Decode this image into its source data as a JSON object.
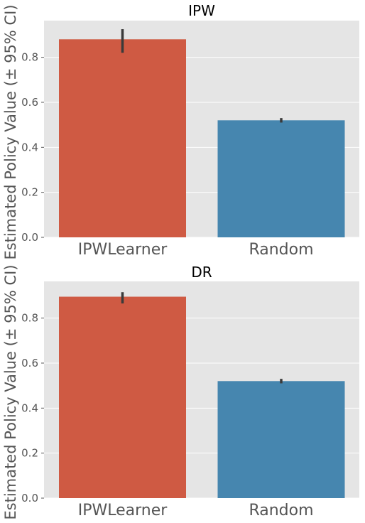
{
  "colors": {
    "panel_bg": "#e5e5e5",
    "grid": "#ffffff",
    "error_bar": "#3a3a3a",
    "series": [
      "#cf5a43",
      "#4686af"
    ]
  },
  "chart_data": [
    {
      "type": "bar",
      "title": "IPW",
      "ylabel": "Estimated Policy Value (± 95% CI)",
      "categories": [
        "IPWLearner",
        "Random"
      ],
      "values": [
        0.88,
        0.52
      ],
      "ci_low": [
        0.82,
        0.51
      ],
      "ci_high": [
        0.925,
        0.53
      ],
      "yticks": [
        0.0,
        0.2,
        0.4,
        0.6,
        0.8
      ],
      "ytick_labels": [
        "0.0",
        "0.2",
        "0.4",
        "0.6",
        "0.8"
      ],
      "ylim": [
        0,
        0.963
      ],
      "grid": true
    },
    {
      "type": "bar",
      "title": "DR",
      "ylabel": "Estimated Policy Value (± 95% CI)",
      "categories": [
        "IPWLearner",
        "Random"
      ],
      "values": [
        0.895,
        0.52
      ],
      "ci_low": [
        0.865,
        0.51
      ],
      "ci_high": [
        0.915,
        0.53
      ],
      "yticks": [
        0.0,
        0.2,
        0.4,
        0.6,
        0.8
      ],
      "ytick_labels": [
        "0.0",
        "0.2",
        "0.4",
        "0.6",
        "0.8"
      ],
      "ylim": [
        0,
        0.963
      ],
      "grid": true
    }
  ]
}
